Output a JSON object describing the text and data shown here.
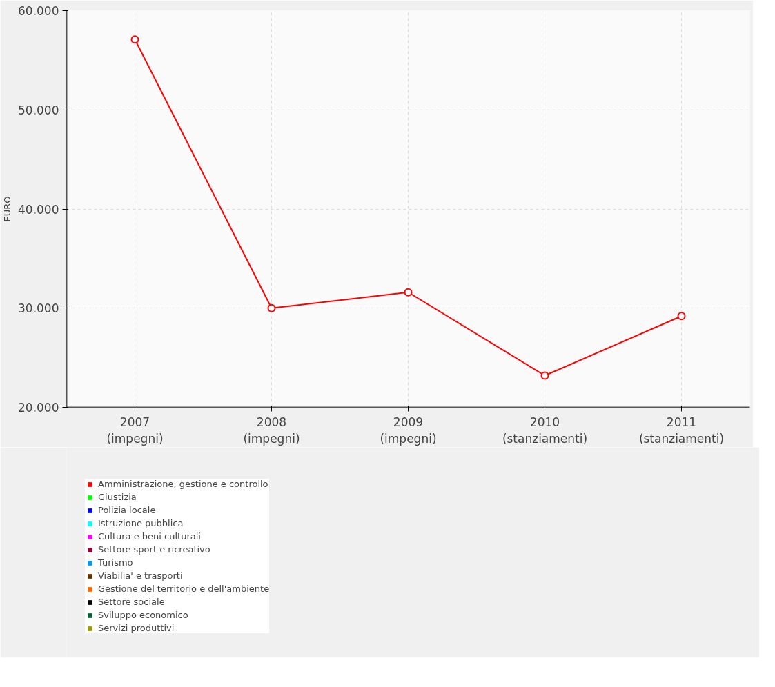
{
  "chart_data": {
    "type": "line",
    "ylabel": "EURO",
    "categories": [
      "2007\n(impegni)",
      "2008\n(impegni)",
      "2009\n(impegni)",
      "2010\n(stanziamenti)",
      "2011\n(stanziamenti)"
    ],
    "ylim": [
      20000,
      60000
    ],
    "yticks": [
      {
        "value": 20000,
        "label": "20.000"
      },
      {
        "value": 30000,
        "label": "30.000"
      },
      {
        "value": 40000,
        "label": "40.000"
      },
      {
        "value": 50000,
        "label": "50.000"
      },
      {
        "value": 60000,
        "label": "60.000"
      }
    ],
    "grid": true,
    "legend": "bottom left",
    "marker": "circle",
    "line_style": "solid",
    "series": [
      {
        "name": "Amministrazione, gestione e controllo",
        "color": "#ff0000",
        "values": [
          57100,
          30000,
          31600,
          23200,
          29200
        ]
      },
      {
        "name": "Giustizia",
        "color": "#00ff00",
        "values": [
          null,
          null,
          null,
          null,
          null
        ]
      },
      {
        "name": "Polizia locale",
        "color": "#0000ff",
        "values": [
          null,
          null,
          null,
          null,
          null
        ]
      },
      {
        "name": "Istruzione pubblica",
        "color": "#00ffff",
        "values": [
          null,
          null,
          null,
          null,
          null
        ]
      },
      {
        "name": "Cultura e beni culturali",
        "color": "#ff00ff",
        "values": [
          null,
          null,
          null,
          null,
          null
        ]
      },
      {
        "name": "Settore sport e ricreativo",
        "color": "#990033",
        "values": [
          null,
          null,
          null,
          null,
          null
        ]
      },
      {
        "name": "Turismo",
        "color": "#0099ff",
        "values": [
          null,
          null,
          null,
          null,
          null
        ]
      },
      {
        "name": "Viabilia' e trasporti",
        "color": "#663300",
        "values": [
          null,
          null,
          null,
          null,
          null
        ]
      },
      {
        "name": "Gestione del territorio e dell'ambiente",
        "color": "#ff6600",
        "values": [
          null,
          null,
          null,
          null,
          null
        ]
      },
      {
        "name": "Settore sociale",
        "color": "#000000",
        "values": [
          null,
          null,
          null,
          null,
          null
        ]
      },
      {
        "name": "Sviluppo economico",
        "color": "#006633",
        "values": [
          null,
          null,
          null,
          null,
          null
        ]
      },
      {
        "name": "Servizi produttivi",
        "color": "#999900",
        "values": [
          null,
          null,
          null,
          null,
          null
        ]
      }
    ]
  }
}
